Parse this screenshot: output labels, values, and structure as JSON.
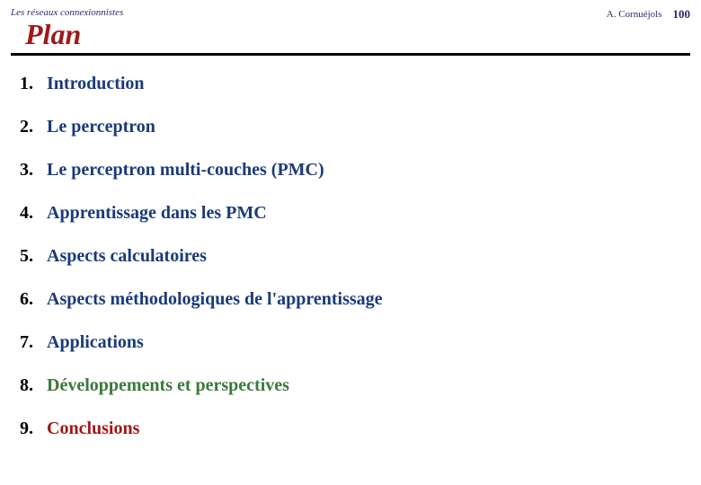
{
  "header": {
    "left": "Les réseaux connexionnistes",
    "author": "A. Cornuéjols",
    "page": "100"
  },
  "title": "Plan",
  "items": [
    {
      "num": "1.",
      "label": "Introduction",
      "color": "#1a3a7a"
    },
    {
      "num": "2.",
      "label": "Le perceptron",
      "color": "#1a3a7a"
    },
    {
      "num": "3.",
      "label": "Le perceptron multi-couches (PMC)",
      "color": "#1a3a7a"
    },
    {
      "num": "4.",
      "label": "Apprentissage dans les PMC",
      "color": "#1a3a7a"
    },
    {
      "num": "5.",
      "label": "Aspects calculatoires",
      "color": "#1a3a7a"
    },
    {
      "num": "6.",
      "label": "Aspects méthodologiques de l'apprentissage",
      "color": "#1a3a7a"
    },
    {
      "num": "7.",
      "label": "Applications",
      "color": "#1a3a7a"
    },
    {
      "num": "8.",
      "label": "Développements et perspectives",
      "color": "#3a7a3a"
    },
    {
      "num": "9.",
      "label": "Conclusions",
      "color": "#a01818"
    }
  ],
  "style": {
    "title_color": "#a01818",
    "title_fontsize": 32,
    "item_fontsize": 20,
    "number_fontsize": 20,
    "header_fontsize": 11,
    "separator_color": "#000000",
    "separator_thickness": 3,
    "background_color": "#ffffff"
  }
}
